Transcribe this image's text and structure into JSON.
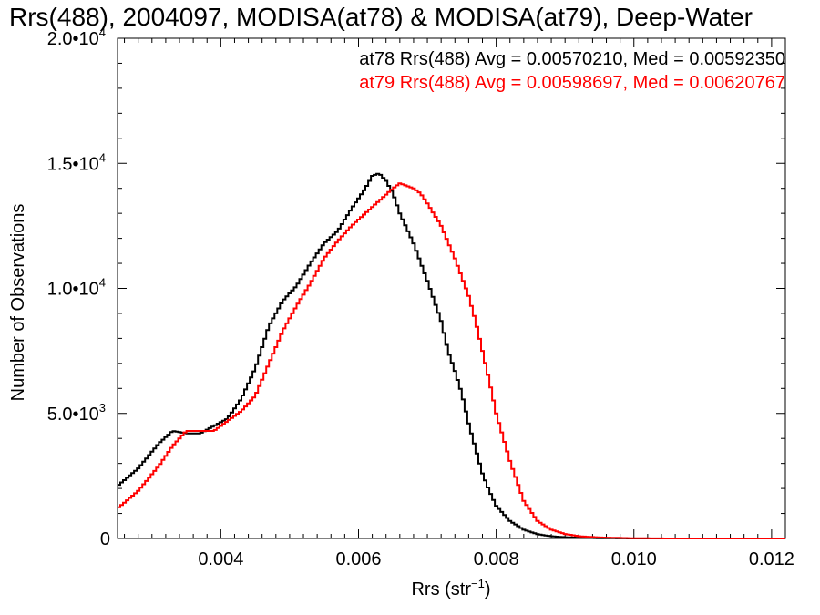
{
  "chart_data": {
    "type": "line",
    "title": "Rrs(488), 2004097, MODISA(at78) & MODISA(at79), Deep-Water",
    "xlabel": "Rrs (str",
    "xlabel_sup": "−1",
    "xlabel_close": ")",
    "ylabel": "Number of Observations",
    "xlim": [
      0.0025,
      0.0122
    ],
    "ylim": [
      0,
      20000
    ],
    "grid": false,
    "legend_position": "top-right",
    "x_ticks": [
      {
        "value": 0.004,
        "label": "0.004"
      },
      {
        "value": 0.006,
        "label": "0.006"
      },
      {
        "value": 0.008,
        "label": "0.008"
      },
      {
        "value": 0.01,
        "label": "0.010"
      },
      {
        "value": 0.012,
        "label": "0.012"
      }
    ],
    "y_ticks": [
      {
        "value": 0,
        "mant": "0",
        "exp": ""
      },
      {
        "value": 5000,
        "mant": "5.0•10",
        "exp": "3"
      },
      {
        "value": 10000,
        "mant": "1.0•10",
        "exp": "4"
      },
      {
        "value": 15000,
        "mant": "1.5•10",
        "exp": "4"
      },
      {
        "value": 20000,
        "mant": "2.0•10",
        "exp": "4"
      }
    ],
    "annotations": [
      {
        "text": "at78 Rrs(488) Avg = 0.00570210, Med = 0.00592350",
        "color": "#000000"
      },
      {
        "text": "at79 Rrs(488) Avg = 0.00598697, Med = 0.00620767",
        "color": "#ff0000"
      }
    ],
    "series": [
      {
        "color": "#000000",
        "x": [
          0.0025,
          0.0028,
          0.0031,
          0.0033,
          0.0035,
          0.0037,
          0.0039,
          0.0041,
          0.0043,
          0.0045,
          0.0047,
          0.0049,
          0.0051,
          0.0053,
          0.0055,
          0.0057,
          0.0059,
          0.0061,
          0.0062,
          0.0063,
          0.0064,
          0.0065,
          0.0066,
          0.0068,
          0.007,
          0.0072,
          0.0073,
          0.0074,
          0.0075,
          0.0076,
          0.0077,
          0.0078,
          0.0079,
          0.008,
          0.0082,
          0.0084,
          0.0086,
          0.0088,
          0.009,
          0.0092,
          0.0095,
          0.01,
          0.0105,
          0.011,
          0.0122
        ],
        "y": [
          2100,
          2800,
          3800,
          4300,
          4200,
          4200,
          4500,
          4800,
          5600,
          6800,
          8500,
          9500,
          10100,
          11000,
          11800,
          12300,
          13200,
          14000,
          14500,
          14600,
          14300,
          13800,
          13000,
          11800,
          10300,
          8700,
          7500,
          6700,
          5800,
          4600,
          3600,
          2600,
          1900,
          1300,
          700,
          350,
          170,
          90,
          50,
          30,
          10,
          0,
          0,
          0,
          0
        ]
      },
      {
        "color": "#ff0000",
        "x": [
          0.0025,
          0.0028,
          0.0031,
          0.0033,
          0.0035,
          0.0037,
          0.0039,
          0.0041,
          0.0043,
          0.0045,
          0.0047,
          0.0049,
          0.0051,
          0.0053,
          0.0055,
          0.0057,
          0.0059,
          0.0061,
          0.0063,
          0.0065,
          0.0066,
          0.0067,
          0.0068,
          0.0069,
          0.007,
          0.0072,
          0.0074,
          0.0076,
          0.0077,
          0.0078,
          0.0079,
          0.008,
          0.0082,
          0.0084,
          0.0086,
          0.0088,
          0.009,
          0.0092,
          0.0095,
          0.01,
          0.0105,
          0.011,
          0.0122
        ],
        "y": [
          1200,
          1900,
          2900,
          3700,
          4300,
          4300,
          4300,
          4700,
          5100,
          5700,
          7000,
          8300,
          9300,
          10200,
          11200,
          11900,
          12500,
          13000,
          13500,
          14000,
          14200,
          14100,
          14000,
          13800,
          13400,
          12500,
          11200,
          9700,
          8700,
          7500,
          6300,
          5000,
          3100,
          1500,
          700,
          350,
          180,
          90,
          40,
          10,
          0,
          0,
          0
        ]
      }
    ]
  }
}
